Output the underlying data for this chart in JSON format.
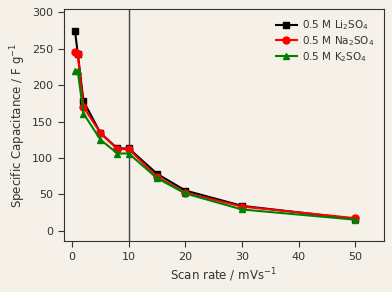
{
  "li_x": [
    0.5,
    1,
    2,
    5,
    8,
    10,
    15,
    20,
    30,
    50
  ],
  "li_y": [
    275,
    243,
    178,
    134,
    113,
    113,
    78,
    55,
    34,
    16
  ],
  "na_x": [
    0.5,
    1,
    2,
    5,
    8,
    10,
    15,
    20,
    30,
    50
  ],
  "na_y": [
    245,
    243,
    170,
    134,
    112,
    112,
    74,
    52,
    33,
    17
  ],
  "k_x": [
    0.5,
    1,
    2,
    5,
    8,
    10,
    15,
    20,
    30,
    50
  ],
  "k_y": [
    220,
    219,
    161,
    125,
    106,
    106,
    72,
    51,
    29,
    15
  ],
  "li_color": "#000000",
  "na_color": "#ff0000",
  "k_color": "#008000",
  "li_label": "0.5 M Li$_2$SO$_4$",
  "na_label": "0.5 M Na$_2$SO$_4$",
  "k_label": "0.5 M K$_2$SO$_4$",
  "xlabel": "Scan rate / mVs$^{-1}$",
  "ylabel": "Specific Capacitance / F g$^{-1}$",
  "xlim": [
    -1.5,
    55
  ],
  "ylim": [
    -15,
    305
  ],
  "xticks": [
    0,
    10,
    20,
    30,
    40,
    50
  ],
  "yticks": [
    0,
    50,
    100,
    150,
    200,
    250,
    300
  ],
  "vline_x": 10,
  "bg_color": "#f5f0e8",
  "figsize": [
    3.92,
    2.92
  ],
  "dpi": 100
}
